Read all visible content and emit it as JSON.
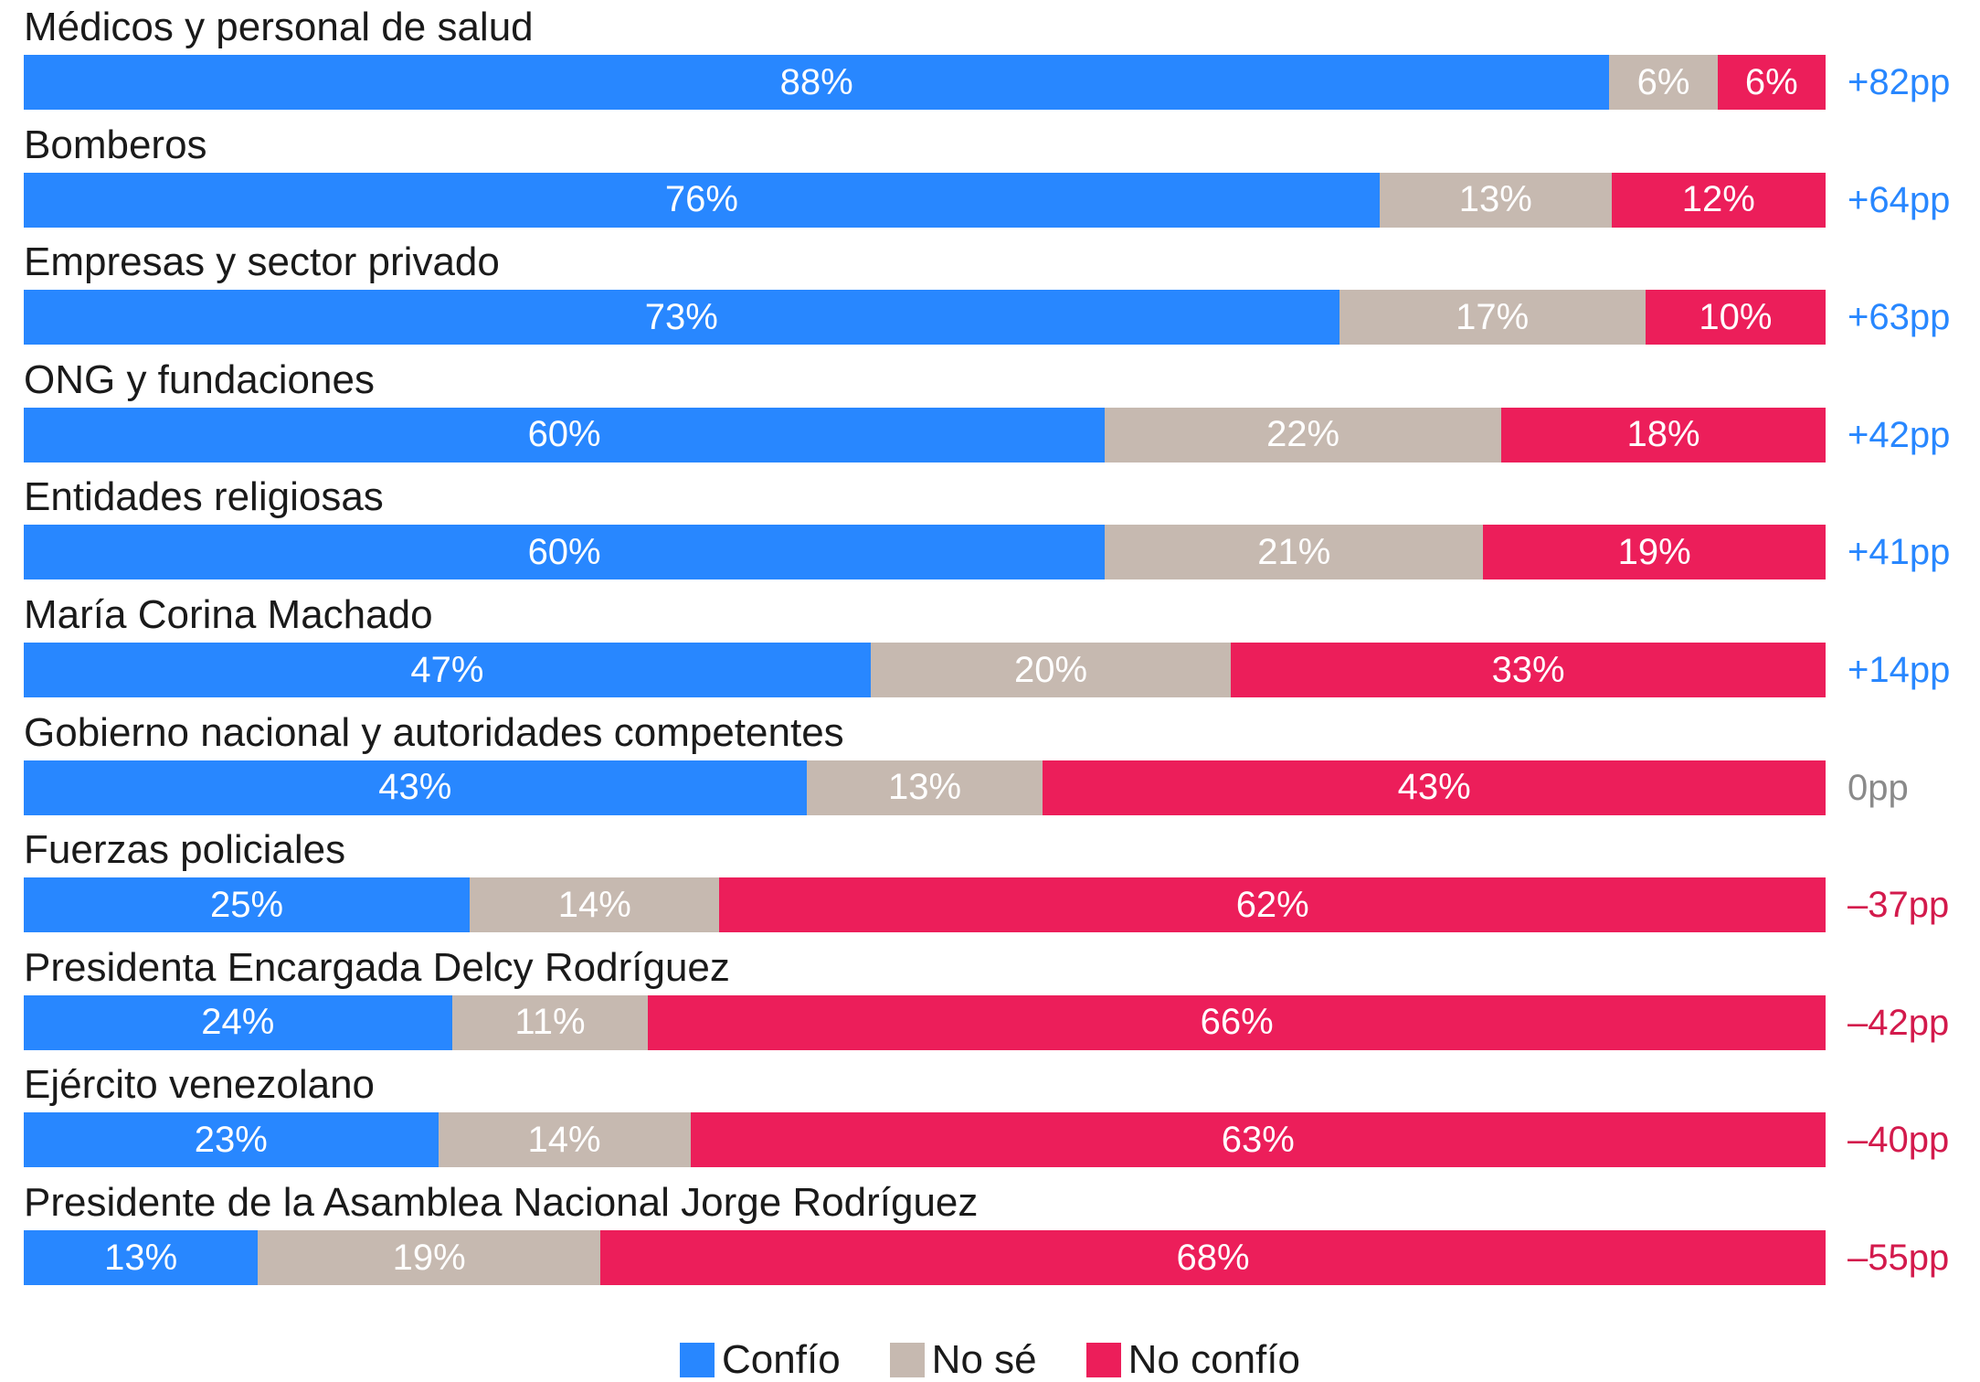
{
  "colors": {
    "confio": "#2887FF",
    "no_se": "#C6B9B0",
    "no_confio": "#EC1E5A",
    "net_positive": "#2887FF",
    "net_zero": "#8A8A8A",
    "net_negative": "#D31A4C"
  },
  "chart_data": {
    "type": "bar",
    "stacked": true,
    "orientation": "horizontal",
    "categories": [
      "Médicos y personal de salud",
      "Bomberos",
      "Empresas y sector privado",
      "ONG y fundaciones",
      "Entidades religiosas",
      "María Corina Machado",
      "Gobierno nacional y autoridades competentes",
      "Fuerzas policiales",
      "Presidenta Encargada Delcy Rodríguez",
      "Ejército venezolano",
      "Presidente de la Asamblea Nacional Jorge Rodríguez"
    ],
    "series": [
      {
        "name": "Confío",
        "values": [
          88,
          76,
          73,
          60,
          60,
          47,
          43,
          25,
          24,
          23,
          13
        ]
      },
      {
        "name": "No sé",
        "values": [
          6,
          13,
          17,
          22,
          21,
          20,
          13,
          14,
          11,
          14,
          19
        ]
      },
      {
        "name": "No confío",
        "values": [
          6,
          12,
          10,
          18,
          19,
          33,
          43,
          62,
          66,
          63,
          68
        ]
      }
    ],
    "data_labels": [
      [
        "88%",
        "6%",
        "6%"
      ],
      [
        "76%",
        "13%",
        "12%"
      ],
      [
        "73%",
        "17%",
        "10%"
      ],
      [
        "60%",
        "22%",
        "18%"
      ],
      [
        "60%",
        "21%",
        "19%"
      ],
      [
        "47%",
        "20%",
        "33%"
      ],
      [
        "43%",
        "13%",
        "43%"
      ],
      [
        "25%",
        "14%",
        "62%"
      ],
      [
        "24%",
        "11%",
        "66%"
      ],
      [
        "23%",
        "14%",
        "63%"
      ],
      [
        "13%",
        "19%",
        "68%"
      ]
    ],
    "net": [
      82,
      64,
      63,
      42,
      41,
      14,
      0,
      -37,
      -42,
      -40,
      -55
    ],
    "net_labels": [
      "+82pp",
      "+64pp",
      "+63pp",
      "+42pp",
      "+41pp",
      "+14pp",
      "0pp",
      "–37pp",
      "–42pp",
      "–40pp",
      "–55pp"
    ],
    "legend": {
      "placement": "bottom-center",
      "entries": [
        "Confío",
        "No sé",
        "No confío"
      ]
    },
    "grid": false
  }
}
